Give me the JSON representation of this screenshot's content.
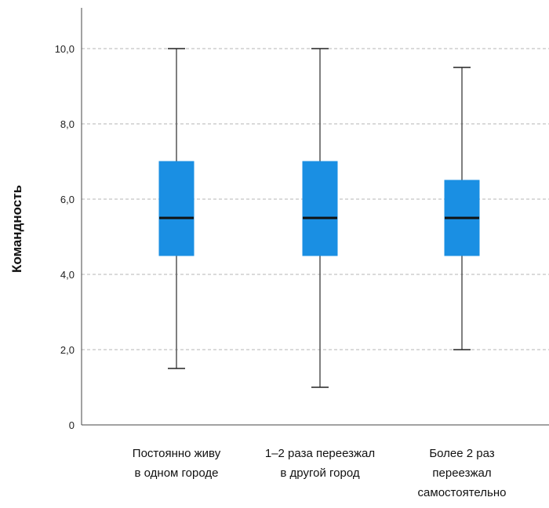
{
  "chart_data": {
    "type": "boxplot",
    "ylabel": "Командность",
    "ylim": [
      0,
      11
    ],
    "yticks": [
      0,
      2,
      4,
      6,
      8,
      10
    ],
    "ytick_labels": [
      "0",
      "2,0",
      "4,0",
      "6,0",
      "8,0",
      "10,0"
    ],
    "grid": true,
    "categories": [
      [
        "Постоянно живу",
        "в одном городе"
      ],
      [
        "1–2 раза переезжал",
        "в другой город"
      ],
      [
        "Более 2 раз",
        "переезжал",
        "самостоятельно"
      ]
    ],
    "boxes": [
      {
        "min": 1.5,
        "q1": 4.5,
        "median": 5.5,
        "q3": 7.0,
        "max": 10.0
      },
      {
        "min": 1.0,
        "q1": 4.5,
        "median": 5.5,
        "q3": 7.0,
        "max": 10.0
      },
      {
        "min": 2.0,
        "q1": 4.5,
        "median": 5.5,
        "q3": 6.5,
        "max": 9.5
      }
    ],
    "colors": {
      "box": "#1a8fe3",
      "whisker": "#555555",
      "median": "#111111",
      "grid": "#b4b4b4",
      "axis": "#444444"
    }
  }
}
